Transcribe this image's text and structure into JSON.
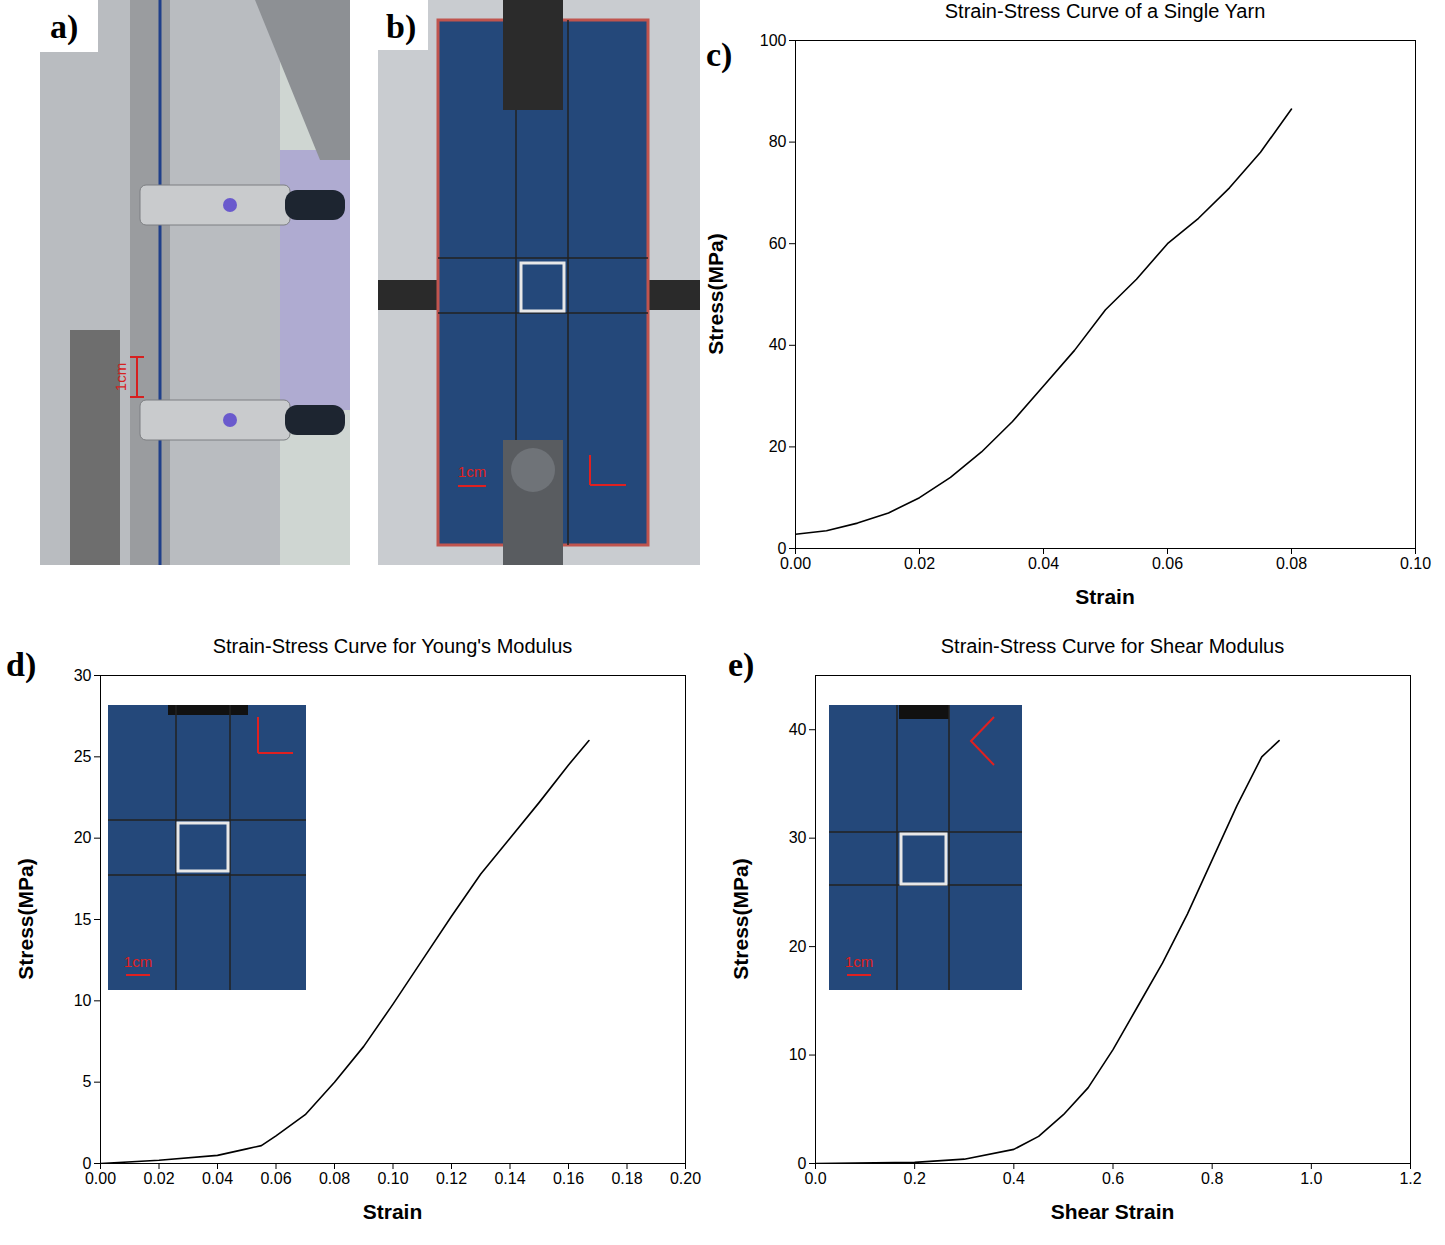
{
  "panel_letters": [
    "a)",
    "b)",
    "c)",
    "d)",
    "e)"
  ],
  "photos": [
    {
      "scale_label": "1cm"
    },
    {
      "scale_label": "1cm"
    }
  ],
  "insets": [
    {
      "scale_label": "1cm"
    },
    {
      "scale_label": "1cm"
    }
  ],
  "chart_data": [
    {
      "type": "line",
      "title": "Strain-Stress Curve of a Single Yarn",
      "x_label": "Strain",
      "y_label": "Stress(MPa)",
      "x": [
        0,
        0.005,
        0.01,
        0.015,
        0.02,
        0.025,
        0.03,
        0.035,
        0.04,
        0.045,
        0.05,
        0.055,
        0.06,
        0.065,
        0.07,
        0.075,
        0.08
      ],
      "values": [
        2.8,
        3.5,
        5,
        7,
        10,
        14,
        19,
        25,
        32,
        39,
        47,
        53,
        60,
        65,
        71,
        78,
        86.5
      ],
      "color": "#000000",
      "line_style": "solid",
      "xlim": [
        0,
        0.1
      ],
      "xticks": [
        {
          "value": 0,
          "label": "0.00"
        },
        {
          "value": 0.02,
          "label": "0.02"
        },
        {
          "value": 0.04,
          "label": "0.04"
        },
        {
          "value": 0.06,
          "label": "0.06"
        },
        {
          "value": 0.08,
          "label": "0.08"
        },
        {
          "value": 0.1,
          "label": "0.10"
        }
      ],
      "ylim": [
        0,
        100
      ],
      "yticks": [
        0,
        20,
        40,
        60,
        80,
        100
      ],
      "grid": false
    },
    {
      "type": "line",
      "title": "Strain-Stress Curve for Young's Modulus",
      "x_label": "Strain",
      "y_label": "Stress(MPa)",
      "x": [
        0,
        0.02,
        0.04,
        0.05,
        0.055,
        0.06,
        0.07,
        0.08,
        0.09,
        0.1,
        0.11,
        0.12,
        0.13,
        0.14,
        0.15,
        0.16,
        0.167
      ],
      "values": [
        0,
        0.2,
        0.5,
        0.9,
        1.1,
        1.7,
        3,
        5,
        7.2,
        9.8,
        12.5,
        15.2,
        17.8,
        20,
        22.2,
        24.5,
        26
      ],
      "color": "#000000",
      "line_style": "solid",
      "xlim": [
        0,
        0.2
      ],
      "xticks": [
        {
          "value": 0,
          "label": "0.00"
        },
        {
          "value": 0.02,
          "label": "0.02"
        },
        {
          "value": 0.04,
          "label": "0.04"
        },
        {
          "value": 0.06,
          "label": "0.06"
        },
        {
          "value": 0.08,
          "label": "0.08"
        },
        {
          "value": 0.1,
          "label": "0.10"
        },
        {
          "value": 0.12,
          "label": "0.12"
        },
        {
          "value": 0.14,
          "label": "0.14"
        },
        {
          "value": 0.16,
          "label": "0.16"
        },
        {
          "value": 0.18,
          "label": "0.18"
        },
        {
          "value": 0.2,
          "label": "0.20"
        }
      ],
      "ylim": [
        0,
        30
      ],
      "yticks": [
        0,
        5,
        10,
        15,
        20,
        25,
        30
      ],
      "grid": false
    },
    {
      "type": "line",
      "title": "Strain-Stress Curve for Shear Modulus",
      "x_label": "Shear Strain",
      "y_label": "Stress(MPa)",
      "x": [
        0,
        0.2,
        0.3,
        0.4,
        0.45,
        0.5,
        0.55,
        0.6,
        0.65,
        0.7,
        0.75,
        0.8,
        0.85,
        0.9,
        0.935
      ],
      "values": [
        0,
        0.1,
        0.4,
        1.3,
        2.5,
        4.5,
        7,
        10.5,
        14.5,
        18.5,
        23,
        28,
        33,
        37.5,
        39
      ],
      "color": "#000000",
      "line_style": "solid",
      "xlim": [
        0,
        1.2
      ],
      "xticks": [
        {
          "value": 0,
          "label": "0.0"
        },
        {
          "value": 0.2,
          "label": "0.2"
        },
        {
          "value": 0.4,
          "label": "0.4"
        },
        {
          "value": 0.6,
          "label": "0.6"
        },
        {
          "value": 0.8,
          "label": "0.8"
        },
        {
          "value": 1,
          "label": "1.0"
        },
        {
          "value": 1.2,
          "label": "1.2"
        }
      ],
      "ylim": [
        0,
        45
      ],
      "yticks": [
        0,
        10,
        20,
        30,
        40
      ],
      "grid": false
    }
  ]
}
